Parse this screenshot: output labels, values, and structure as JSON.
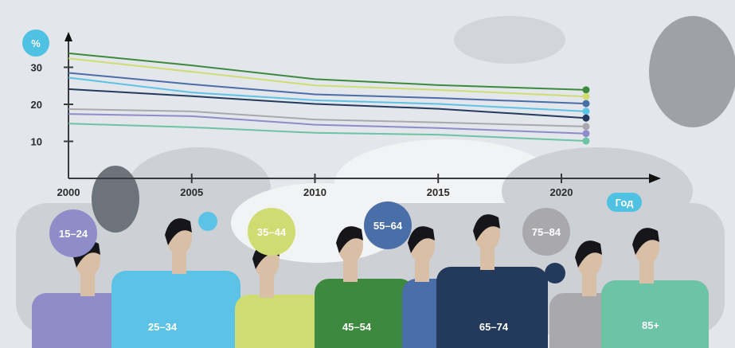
{
  "chart_data": {
    "type": "line",
    "title": "",
    "xlabel": "Год",
    "ylabel": "%",
    "x_ticks": [
      "2000",
      "2005",
      "2010",
      "2015",
      "2020"
    ],
    "y_ticks": [
      "10",
      "20",
      "30"
    ],
    "xlim": [
      2000,
      2022
    ],
    "ylim": [
      0,
      35
    ],
    "grid": false,
    "x": [
      2000,
      2005,
      2010,
      2015,
      2021
    ],
    "series": [
      {
        "name": "45–54",
        "color": "#3d8a3e",
        "values": [
          33.8,
          30.5,
          26.8,
          25.2,
          23.9
        ]
      },
      {
        "name": "35–44",
        "color": "#cfdc72",
        "values": [
          32.4,
          28.8,
          25.1,
          23.9,
          22.1
        ]
      },
      {
        "name": "55–64",
        "color": "#4a6ea8",
        "values": [
          28.5,
          25.4,
          22.7,
          21.7,
          20.2
        ]
      },
      {
        "name": "25–34",
        "color": "#5cc3e6",
        "values": [
          27.2,
          23.2,
          21.1,
          20.1,
          18.1
        ]
      },
      {
        "name": "65–74",
        "color": "#233a5c",
        "values": [
          24.1,
          22.2,
          20.1,
          18.8,
          16.3
        ]
      },
      {
        "name": "75–84",
        "color": "#a9a9ad",
        "values": [
          18.7,
          18.1,
          15.9,
          15.1,
          14.0
        ]
      },
      {
        "name": "15–24",
        "color": "#8e8cc9",
        "values": [
          17.4,
          16.8,
          14.5,
          13.6,
          12.1
        ]
      },
      {
        "name": "85+",
        "color": "#6cc3a5",
        "values": [
          14.8,
          13.8,
          12.3,
          11.8,
          10.1
        ]
      }
    ],
    "legend": "age-group bubbles on illustrated people below the chart"
  },
  "colors": {
    "background": "#e3e6ea",
    "accent": "#4fc1e3",
    "axis": "#3a3a3c"
  }
}
